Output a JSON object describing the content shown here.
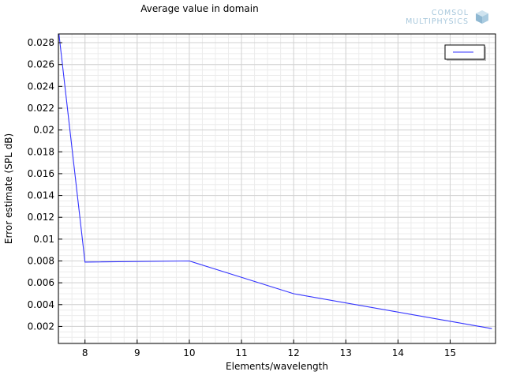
{
  "chart_data": {
    "type": "line",
    "title": "Average value in domain",
    "xlabel": "Elements/wavelength",
    "ylabel": "Error estimate (SPL dB)",
    "xlim": [
      7.49,
      15.87
    ],
    "ylim": [
      0.00044,
      0.0288
    ],
    "x_ticks": [
      8,
      9,
      10,
      11,
      12,
      13,
      14,
      15
    ],
    "y_ticks": [
      0.002,
      0.004,
      0.006,
      0.008,
      0.01,
      0.012,
      0.014,
      0.016,
      0.018,
      0.02,
      0.022,
      0.024,
      0.026,
      0.028
    ],
    "x_minor_step": 0.25,
    "y_minor_step": 0.0005,
    "grid": true,
    "legend": "top-right",
    "series": [
      {
        "name": "",
        "color": "#3333ff",
        "x": [
          7.5,
          8.0,
          10.0,
          12.0,
          15.8
        ],
        "y": [
          0.0288,
          0.0079,
          0.008,
          0.005,
          0.0018
        ]
      }
    ]
  },
  "logo": {
    "line1": "COMSOL",
    "line2": "MULTIPHYSICS"
  }
}
